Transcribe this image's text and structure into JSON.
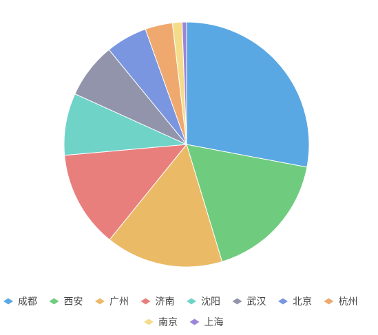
{
  "chart_data": {
    "type": "pie",
    "title": "",
    "legend_position": "bottom",
    "series": [
      {
        "name": "成都",
        "value": 28.7,
        "color": "#5AA8E3"
      },
      {
        "name": "西安",
        "value": 17.8,
        "color": "#6FCC7E"
      },
      {
        "name": "广州",
        "value": 15.9,
        "color": "#EBBA66"
      },
      {
        "name": "济南",
        "value": 13.1,
        "color": "#E97F7D"
      },
      {
        "name": "沈阳",
        "value": 8.4,
        "color": "#6FD3C8"
      },
      {
        "name": "武汉",
        "value": 7.5,
        "color": "#9194AB"
      },
      {
        "name": "北京",
        "value": 5.6,
        "color": "#7A96E0"
      },
      {
        "name": "杭州",
        "value": 3.7,
        "color": "#EFA96F"
      },
      {
        "name": "南京",
        "value": 1.3,
        "color": "#F4DD8A"
      },
      {
        "name": "上海",
        "value": 0.6,
        "color": "#9C85D9"
      }
    ]
  }
}
